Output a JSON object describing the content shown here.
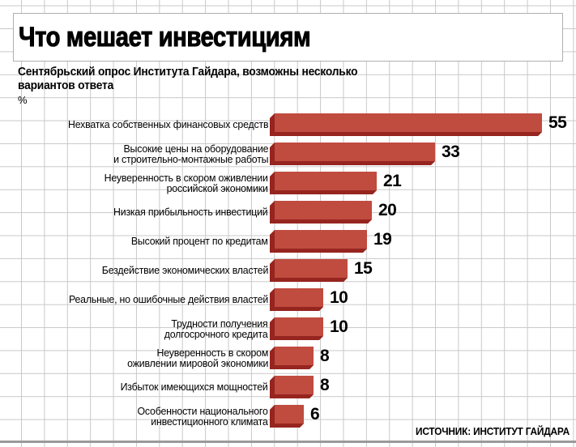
{
  "header": {
    "title": "Что мешает инвестициям",
    "subtitle": "Сентябрьский опрос Института Гайдара, возможны несколько\nвариантов ответа",
    "unit": "%"
  },
  "footer": {
    "source": "ИСТОЧНИК: ИНСТИТУТ ГАЙДАРА"
  },
  "colors": {
    "bar_face": "#c04b3f",
    "bar_edge": "#96241f",
    "grid_line": "#c9c9c9",
    "text": "#000000",
    "background": "#ffffff"
  },
  "chart_data": {
    "type": "bar",
    "orientation": "horizontal",
    "title": "Что мешает инвестициям",
    "subtitle": "Сентябрьский опрос Института Гайдара, возможны несколько вариантов ответа",
    "unit": "%",
    "grid": true,
    "value_labels": "end-of-bar",
    "xlim": [
      0,
      60
    ],
    "categories": [
      "Нехватка собственных финансовых средств",
      "Высокие цены на оборудование\nи строительно-монтажные работы",
      "Неуверенность в скором оживлении\nроссийской экономики",
      "Низкая прибыльность инвестиций",
      "Высокий процент по кредитам",
      "Бездействие экономических властей",
      "Реальные, но ошибочные действия властей",
      "Трудности получения\nдолгосрочного кредита",
      "Неуверенность в скором\nоживлении мировой экономики",
      "Избыток имеющихся мощностей",
      "Особенности национального\nинвестиционного климата"
    ],
    "values": [
      55,
      33,
      21,
      20,
      19,
      15,
      10,
      10,
      8,
      8,
      6
    ],
    "source": "ИСТОЧНИК: ИНСТИТУТ ГАЙДАРА"
  }
}
